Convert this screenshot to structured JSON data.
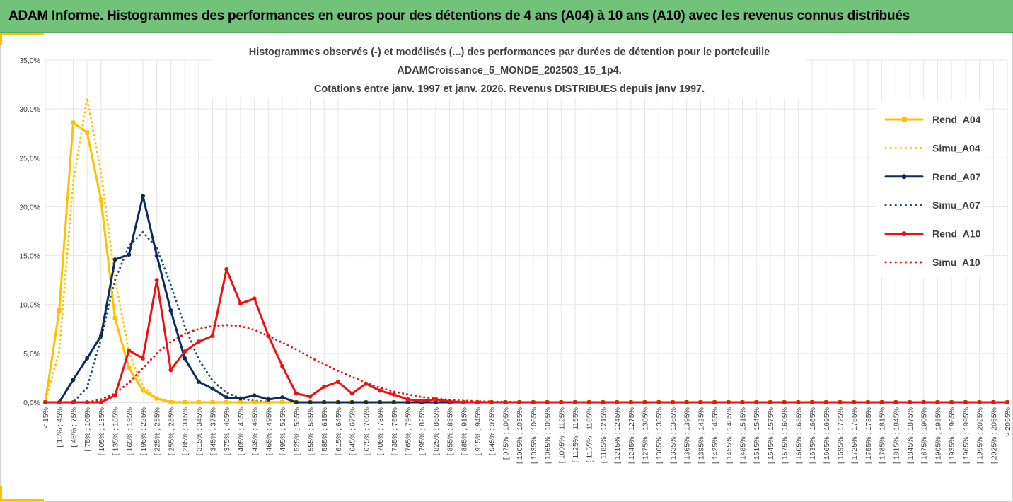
{
  "page": {
    "title": "ADAM Informe. Histogrammes des performances en euros pour des détentions de 4 ans (A04) à 10 ans (A10) avec les revenus connus distribués"
  },
  "chart_data": {
    "type": "line",
    "title_lines": [
      "Histogrammes observés (-) et modélisés (...) des performances par durées de détention pour le portefeuille",
      "ADAMCroissance_5_MONDE_202503_15_1p4.",
      "Cotations entre janv. 1997 et janv. 2026. Revenus DISTRIBUES depuis janv 1997."
    ],
    "xlabel": "",
    "ylabel": "",
    "ylim": [
      0,
      35
    ],
    "yticks": [
      "0,0%",
      "5,0%",
      "10,0%",
      "15,0%",
      "20,0%",
      "25,0%",
      "30,0%",
      "35,0%"
    ],
    "grid": true,
    "legend_position": "right",
    "categories": [
      "< 15%",
      "[ 15% ; 45%",
      "[ 45% ; 75%",
      "[ 75% ; 105%",
      "[ 105% ; 135%",
      "[ 135% ; 165%",
      "[ 165% ; 195%",
      "[ 195% ; 225%",
      "[ 225% ; 255%",
      "[ 255% ; 285%",
      "[ 285% ; 315%",
      "[ 315% ; 345%",
      "[ 345% ; 375%",
      "[ 375% ; 405%",
      "[ 405% ; 435%",
      "[ 435% ; 465%",
      "[ 465% ; 495%",
      "[ 495% ; 525%",
      "[ 525% ; 555%",
      "[ 555% ; 585%",
      "[ 585% ; 615%",
      "[ 615% ; 645%",
      "[ 645% ; 675%",
      "[ 675% ; 705%",
      "[ 705% ; 735%",
      "[ 735% ; 765%",
      "[ 765% ; 795%",
      "[ 795% ; 825%",
      "[ 825% ; 855%",
      "[ 855% ; 885%",
      "[ 885% ; 915%",
      "[ 915% ; 945%",
      "[ 945% ; 975%",
      "[ 975% ; 1005%",
      "[ 1005% ; 1035%",
      "[ 1035% ; 1065%",
      "[ 1065% ; 1095%",
      "[ 1095% ; 1125%",
      "[ 1125% ; 1155%",
      "[ 1155% ; 1185%",
      "[ 1185% ; 1215%",
      "[ 1215% ; 1245%",
      "[ 1245% ; 1275%",
      "[ 1275% ; 1305%",
      "[ 1305% ; 1335%",
      "[ 1335% ; 1365%",
      "[ 1365% ; 1395%",
      "[ 1395% ; 1425%",
      "[ 1425% ; 1455%",
      "[ 1455% ; 1485%",
      "[ 1485% ; 1515%",
      "[ 1515% ; 1545%",
      "[ 1545% ; 1575%",
      "[ 1575% ; 1605%",
      "[ 1605% ; 1635%",
      "[ 1635% ; 1665%",
      "[ 1665% ; 1695%",
      "[ 1695% ; 1725%",
      "[ 1725% ; 1755%",
      "[ 1755% ; 1785%",
      "[ 1785% ; 1815%",
      "[ 1815% ; 1845%",
      "[ 1845% ; 1875%",
      "[ 1875% ; 1905%",
      "[ 1905% ; 1935%",
      "[ 1935% ; 1965%",
      "[ 1965% ; 1995%",
      "[ 1995% ; 2025%",
      "[ 2025% ; 2055%",
      "> 2055%"
    ],
    "series": [
      {
        "name": "Rend_A04",
        "color": "#ffc000",
        "style": "solid",
        "marker": "square",
        "values": [
          0,
          9.4,
          28.6,
          27.6,
          20.7,
          8.6,
          3.5,
          1.2,
          0.4,
          0,
          0,
          0,
          0,
          0,
          0,
          0,
          0,
          0,
          0,
          0,
          0,
          0,
          0,
          0,
          0,
          0,
          0,
          0,
          0,
          0,
          0,
          0,
          0,
          0,
          0,
          0,
          0,
          0,
          0,
          0,
          0,
          0,
          0,
          0,
          0,
          0,
          0,
          0,
          0,
          0,
          0,
          0,
          0,
          0,
          0,
          0,
          0,
          0,
          0,
          0,
          0,
          0,
          0,
          0,
          0,
          0,
          0,
          0,
          0,
          0
        ]
      },
      {
        "name": "Simu_A04",
        "color": "#ffc000",
        "style": "dotted",
        "marker": "none",
        "values": [
          0,
          5.2,
          22.5,
          31.1,
          23.5,
          12.6,
          5.1,
          1.6,
          0.4,
          0.1,
          0,
          0,
          0,
          0,
          0,
          0,
          0,
          0,
          0,
          0,
          0,
          0,
          0,
          0,
          0,
          0,
          0,
          0,
          0,
          0,
          0,
          0,
          0,
          0,
          0,
          0,
          0,
          0,
          0,
          0,
          0,
          0,
          0,
          0,
          0,
          0,
          0,
          0,
          0,
          0,
          0,
          0,
          0,
          0,
          0,
          0,
          0,
          0,
          0,
          0,
          0,
          0,
          0,
          0,
          0,
          0,
          0,
          0,
          0,
          0
        ]
      },
      {
        "name": "Rend_A07",
        "color": "#0e2a5e",
        "style": "solid",
        "marker": "circle",
        "values": [
          0,
          0,
          2.3,
          4.5,
          6.8,
          14.6,
          15.1,
          21.1,
          15.0,
          9.4,
          4.5,
          2.1,
          1.4,
          0.5,
          0.4,
          0.7,
          0.3,
          0.5,
          0,
          0,
          0,
          0,
          0,
          0,
          0,
          0,
          0,
          0,
          0,
          0,
          0,
          0,
          0,
          0,
          0,
          0,
          0,
          0,
          0,
          0,
          0,
          0,
          0,
          0,
          0,
          0,
          0,
          0,
          0,
          0,
          0,
          0,
          0,
          0,
          0,
          0,
          0,
          0,
          0,
          0,
          0,
          0,
          0,
          0,
          0,
          0,
          0,
          0,
          0,
          0
        ]
      },
      {
        "name": "Simu_A07",
        "color": "#1f4e79",
        "style": "dotted",
        "marker": "none",
        "values": [
          0,
          0,
          0,
          1.5,
          6.5,
          12.5,
          16.0,
          17.4,
          15.8,
          12.0,
          7.8,
          4.4,
          2.2,
          1.0,
          0.4,
          0.15,
          0.05,
          0,
          0,
          0,
          0,
          0,
          0,
          0,
          0,
          0,
          0,
          0,
          0,
          0,
          0,
          0,
          0,
          0,
          0,
          0,
          0,
          0,
          0,
          0,
          0,
          0,
          0,
          0,
          0,
          0,
          0,
          0,
          0,
          0,
          0,
          0,
          0,
          0,
          0,
          0,
          0,
          0,
          0,
          0,
          0,
          0,
          0,
          0,
          0,
          0,
          0,
          0,
          0,
          0
        ]
      },
      {
        "name": "Rend_A10",
        "color": "#ee1111",
        "style": "solid",
        "marker": "circle",
        "values": [
          0,
          0,
          0,
          0,
          0,
          0.7,
          5.3,
          4.5,
          12.5,
          3.3,
          5.2,
          6.2,
          6.8,
          13.6,
          10.1,
          10.6,
          6.8,
          3.7,
          0.9,
          0.6,
          1.6,
          2.1,
          0.9,
          1.9,
          1.2,
          0.8,
          0.3,
          0.15,
          0.3,
          0.1,
          0,
          0,
          0,
          0,
          0,
          0,
          0,
          0,
          0,
          0,
          0,
          0,
          0,
          0,
          0,
          0,
          0,
          0,
          0,
          0,
          0,
          0,
          0,
          0,
          0,
          0,
          0,
          0,
          0,
          0,
          0,
          0,
          0,
          0,
          0,
          0,
          0,
          0,
          0,
          0
        ]
      },
      {
        "name": "Simu_A10",
        "color": "#ee1111",
        "style": "dotted",
        "marker": "none",
        "values": [
          0,
          0,
          0,
          0,
          0.3,
          0.9,
          2.0,
          3.5,
          5.0,
          6.2,
          7.0,
          7.5,
          7.8,
          7.9,
          7.8,
          7.4,
          6.8,
          6.1,
          5.4,
          4.6,
          3.9,
          3.2,
          2.6,
          2.0,
          1.5,
          1.1,
          0.8,
          0.55,
          0.38,
          0.25,
          0.16,
          0.1,
          0.07,
          0.04,
          0.02,
          0.01,
          0,
          0,
          0,
          0,
          0,
          0,
          0,
          0,
          0,
          0,
          0,
          0,
          0,
          0,
          0,
          0,
          0,
          0,
          0,
          0,
          0,
          0,
          0,
          0,
          0,
          0,
          0,
          0,
          0,
          0,
          0,
          0,
          0,
          0
        ]
      }
    ]
  }
}
